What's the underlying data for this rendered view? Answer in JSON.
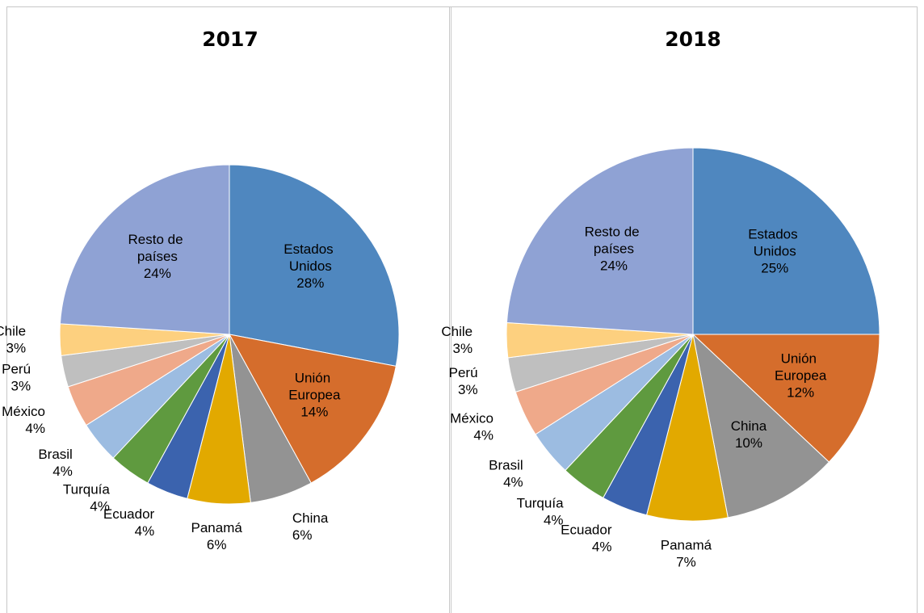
{
  "chart_data": [
    {
      "type": "pie",
      "title": "2017",
      "categories": [
        "Estados Unidos",
        "Unión Europea",
        "China",
        "Panamá",
        "Ecuador",
        "Turquía",
        "Brasil",
        "México",
        "Perú",
        "Chile",
        "Resto de países"
      ],
      "values": [
        28,
        14,
        6,
        6,
        4,
        4,
        4,
        4,
        3,
        3,
        24
      ],
      "value_labels": [
        "28%",
        "14%",
        "6%",
        "6%",
        "4%",
        "4%",
        "4%",
        "4%",
        "3%",
        "3%",
        "24%"
      ],
      "colors": [
        "#4f87bf",
        "#d56d2c",
        "#939393",
        "#e2a900",
        "#3b63ae",
        "#5f9a3f",
        "#9cbce1",
        "#efa98a",
        "#bfbfbf",
        "#fdd07f",
        "#8fa2d4"
      ]
    },
    {
      "type": "pie",
      "title": "2018",
      "categories": [
        "Estados Unidos",
        "Unión Europea",
        "China",
        "Panamá",
        "Ecuador",
        "Turquía",
        "Brasil",
        "México",
        "Perú",
        "Chile",
        "Resto de países"
      ],
      "values": [
        25,
        12,
        10,
        7,
        4,
        4,
        4,
        4,
        3,
        3,
        24
      ],
      "value_labels": [
        "25%",
        "12%",
        "10%",
        "7%",
        "4%",
        "4%",
        "4%",
        "4%",
        "3%",
        "3%",
        "24%"
      ],
      "colors": [
        "#4f87bf",
        "#d56d2c",
        "#939393",
        "#e2a900",
        "#3b63ae",
        "#5f9a3f",
        "#9cbce1",
        "#efa98a",
        "#bfbfbf",
        "#fdd07f",
        "#8fa2d4"
      ]
    }
  ]
}
